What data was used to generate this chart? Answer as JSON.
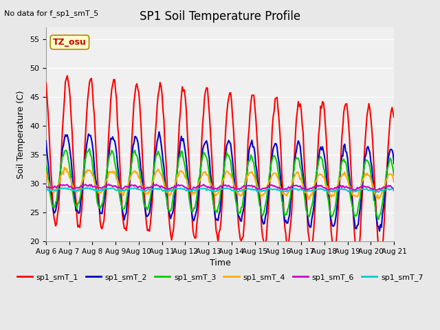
{
  "title": "SP1 Soil Temperature Profile",
  "subtitle": "No data for f_sp1_smT_5",
  "tz_label": "TZ_osu",
  "xlabel": "Time",
  "ylabel": "Soil Temperature (C)",
  "ylim": [
    20,
    57
  ],
  "yticks": [
    20,
    25,
    30,
    35,
    40,
    45,
    50,
    55
  ],
  "xlim_days": [
    0,
    15
  ],
  "x_tick_labels": [
    "Aug 6",
    "Aug 7",
    "Aug 8",
    "Aug 9",
    "Aug 10",
    "Aug 11",
    "Aug 12",
    "Aug 13",
    "Aug 14",
    "Aug 15",
    "Aug 16",
    "Aug 17",
    "Aug 18",
    "Aug 19",
    "Aug 20",
    "Aug 21"
  ],
  "series": {
    "sp1_smT_1": {
      "color": "#ff0000",
      "lw": 1.5
    },
    "sp1_smT_2": {
      "color": "#0000cc",
      "lw": 1.5
    },
    "sp1_smT_3": {
      "color": "#00cc00",
      "lw": 1.5
    },
    "sp1_smT_4": {
      "color": "#ffaa00",
      "lw": 1.5
    },
    "sp1_smT_6": {
      "color": "#cc00cc",
      "lw": 1.5
    },
    "sp1_smT_7": {
      "color": "#00cccc",
      "lw": 1.5
    }
  },
  "background_color": "#e8e8e8",
  "plot_bg_color": "#f0f0f0",
  "grid_color": "#ffffff"
}
